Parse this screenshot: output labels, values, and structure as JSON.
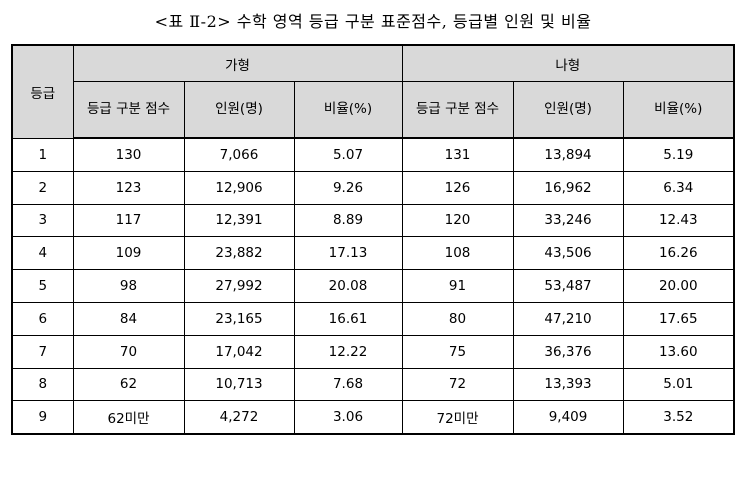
{
  "caption": "<표 Ⅱ-2> 수학 영역 등급 구분 표준점수, 등급별 인원 및 비율",
  "table": {
    "grade_header": "등급",
    "group_a": "가형",
    "group_b": "나형",
    "sub_headers": {
      "cutoff": "등급 구분 점수",
      "count": "인원(명)",
      "ratio": "비율(%)"
    },
    "rows": [
      {
        "grade": "1",
        "a_cut": "130",
        "a_count": "7,066",
        "a_pct": "5.07",
        "b_cut": "131",
        "b_count": "13,894",
        "b_pct": "5.19"
      },
      {
        "grade": "2",
        "a_cut": "123",
        "a_count": "12,906",
        "a_pct": "9.26",
        "b_cut": "126",
        "b_count": "16,962",
        "b_pct": "6.34"
      },
      {
        "grade": "3",
        "a_cut": "117",
        "a_count": "12,391",
        "a_pct": "8.89",
        "b_cut": "120",
        "b_count": "33,246",
        "b_pct": "12.43"
      },
      {
        "grade": "4",
        "a_cut": "109",
        "a_count": "23,882",
        "a_pct": "17.13",
        "b_cut": "108",
        "b_count": "43,506",
        "b_pct": "16.26"
      },
      {
        "grade": "5",
        "a_cut": "98",
        "a_count": "27,992",
        "a_pct": "20.08",
        "b_cut": "91",
        "b_count": "53,487",
        "b_pct": "20.00"
      },
      {
        "grade": "6",
        "a_cut": "84",
        "a_count": "23,165",
        "a_pct": "16.61",
        "b_cut": "80",
        "b_count": "47,210",
        "b_pct": "17.65"
      },
      {
        "grade": "7",
        "a_cut": "70",
        "a_count": "17,042",
        "a_pct": "12.22",
        "b_cut": "75",
        "b_count": "36,376",
        "b_pct": "13.60"
      },
      {
        "grade": "8",
        "a_cut": "62",
        "a_count": "10,713",
        "a_pct": "7.68",
        "b_cut": "72",
        "b_count": "13,393",
        "b_pct": "5.01"
      },
      {
        "grade": "9",
        "a_cut": "62미만",
        "a_count": "4,272",
        "a_pct": "3.06",
        "b_cut": "72미만",
        "b_count": "9,409",
        "b_pct": "3.52"
      }
    ]
  }
}
